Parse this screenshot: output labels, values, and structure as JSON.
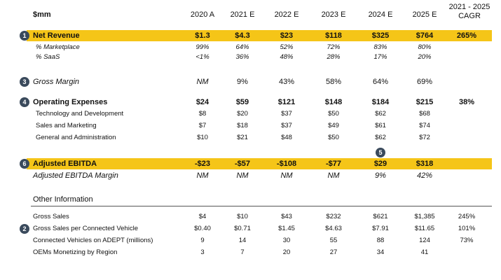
{
  "header": {
    "unit": "$mm",
    "years": [
      "2020 A",
      "2021 E",
      "2022 E",
      "2023 E",
      "2024 E",
      "2025 E"
    ],
    "cagr_line1": "2021 - 2025",
    "cagr_line2": "CAGR"
  },
  "rows": {
    "net_revenue": {
      "badge": "1",
      "label": "Net Revenue",
      "values": [
        "$1.3",
        "$4.3",
        "$23",
        "$118",
        "$325",
        "$764"
      ],
      "cagr": "265%"
    },
    "pct_marketplace": {
      "label": "% Marketplace",
      "values": [
        "99%",
        "64%",
        "52%",
        "72%",
        "83%",
        "80%"
      ]
    },
    "pct_saas": {
      "label": "% SaaS",
      "values": [
        "<1%",
        "36%",
        "48%",
        "28%",
        "17%",
        "20%"
      ]
    },
    "gross_margin": {
      "badge": "3",
      "label": "Gross Margin",
      "values": [
        "NM",
        "9%",
        "43%",
        "58%",
        "64%",
        "69%"
      ]
    },
    "opex": {
      "badge": "4",
      "label": "Operating Expenses",
      "values": [
        "$24",
        "$59",
        "$121",
        "$148",
        "$184",
        "$215"
      ],
      "cagr": "38%"
    },
    "tech_dev": {
      "label": "Technology and Development",
      "values": [
        "$8",
        "$20",
        "$37",
        "$50",
        "$62",
        "$68"
      ]
    },
    "sales_mkt": {
      "label": "Sales and Marketing",
      "values": [
        "$7",
        "$18",
        "$37",
        "$49",
        "$61",
        "$74"
      ]
    },
    "gen_admin": {
      "label": "General and Administration",
      "values": [
        "$10",
        "$21",
        "$48",
        "$50",
        "$62",
        "$72"
      ]
    },
    "ebitda_badge_above": "5",
    "adj_ebitda": {
      "badge": "6",
      "label": "Adjusted EBITDA",
      "values": [
        "-$23",
        "-$57",
        "-$108",
        "-$77",
        "$29",
        "$318"
      ]
    },
    "ebitda_margin": {
      "label": "Adjusted EBITDA Margin",
      "values": [
        "NM",
        "NM",
        "NM",
        "NM",
        "9%",
        "42%"
      ]
    }
  },
  "other": {
    "title": "Other Information",
    "gross_sales": {
      "label": "Gross Sales",
      "values": [
        "$4",
        "$10",
        "$43",
        "$232",
        "$621",
        "$1,385"
      ],
      "cagr": "245%"
    },
    "gs_per_vehicle": {
      "badge": "2",
      "label": "Gross Sales per Connected Vehicle",
      "values": [
        "$0.40",
        "$0.71",
        "$1.45",
        "$4.63",
        "$7.91",
        "$11.65"
      ],
      "cagr": "101%"
    },
    "connected_vehicles": {
      "label": "Connected Vehicles on ADEPT (millions)",
      "values": [
        "9",
        "14",
        "30",
        "55",
        "88",
        "124"
      ],
      "cagr": "73%"
    },
    "oems": {
      "label": "OEMs Monetizing by Region",
      "values": [
        "3",
        "7",
        "20",
        "27",
        "34",
        "41"
      ]
    }
  },
  "colors": {
    "highlight": "#f5c518",
    "badge": "#3a4a5c"
  }
}
